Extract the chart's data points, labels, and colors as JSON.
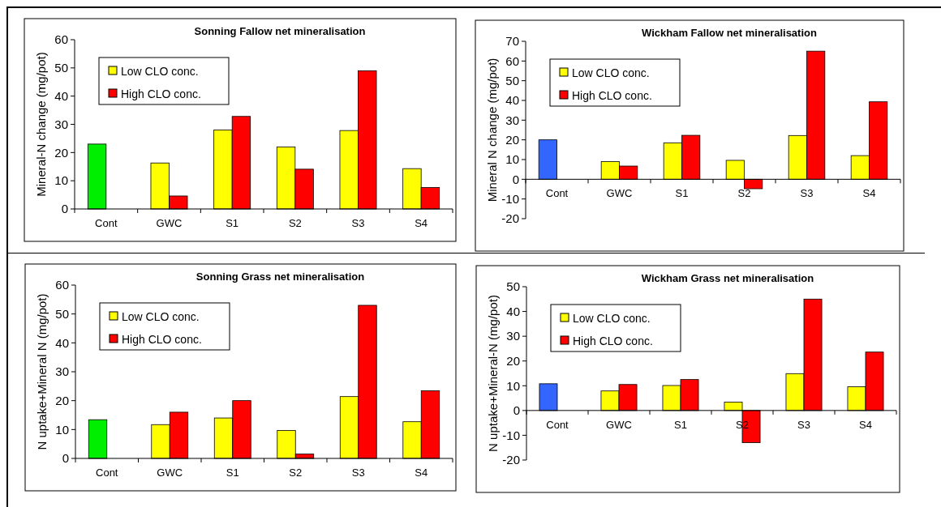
{
  "chart_data": [
    {
      "type": "bar",
      "title": "Sonning Fallow net mineralisation",
      "ylabel": "Mineral-N change (mg/pot)",
      "categories": [
        "Cont",
        "GWC",
        "S1",
        "S2",
        "S3",
        "S4"
      ],
      "series": [
        {
          "name": "Low CLO conc.",
          "color": "#ffff00",
          "colors": [
            "#00ee00",
            "#ffff00",
            "#ffff00",
            "#ffff00",
            "#ffff00",
            "#ffff00"
          ],
          "values": [
            23,
            16.3,
            28,
            22,
            27.8,
            14.3
          ]
        },
        {
          "name": "High CLO conc.",
          "color": "#ff0000",
          "values": [
            null,
            4.6,
            32.8,
            14.1,
            49,
            7.6
          ]
        }
      ],
      "ylim": [
        0,
        60
      ],
      "yticks": [
        0,
        10,
        20,
        30,
        40,
        50,
        60
      ],
      "legend": "top left",
      "grid": false
    },
    {
      "type": "bar",
      "title": "Wickham Fallow net mineralisation",
      "ylabel": "Mineral N change (mg/pot)",
      "categories": [
        "Cont",
        "GWC",
        "S1",
        "S2",
        "S3",
        "S4"
      ],
      "series": [
        {
          "name": "Low CLO conc.",
          "color": "#ffff00",
          "colors": [
            "#3366ff",
            "#ffff00",
            "#ffff00",
            "#ffff00",
            "#ffff00",
            "#ffff00"
          ],
          "values": [
            20,
            9,
            18.5,
            9.6,
            22.2,
            12
          ]
        },
        {
          "name": "High CLO conc.",
          "color": "#ff0000",
          "values": [
            null,
            6.7,
            22.3,
            -4.8,
            65,
            39.3
          ]
        }
      ],
      "ylim": [
        -20,
        70
      ],
      "yticks": [
        -20,
        -10,
        0,
        10,
        20,
        30,
        40,
        50,
        60,
        70
      ],
      "legend": "top left",
      "grid": false
    },
    {
      "type": "bar",
      "title": "Sonning Grass net mineralisation",
      "ylabel": "N uptake+Mineral N (mg/pot)",
      "categories": [
        "Cont",
        "GWC",
        "S1",
        "S2",
        "S3",
        "S4"
      ],
      "series": [
        {
          "name": "Low CLO conc.",
          "color": "#ffff00",
          "colors": [
            "#00ee00",
            "#ffff00",
            "#ffff00",
            "#ffff00",
            "#ffff00",
            "#ffff00"
          ],
          "values": [
            13.4,
            11.7,
            14,
            9.7,
            21.4,
            12.7
          ]
        },
        {
          "name": "High CLO conc.",
          "color": "#ff0000",
          "values": [
            null,
            16,
            20,
            1.5,
            53,
            23.4
          ]
        }
      ],
      "ylim": [
        0,
        60
      ],
      "yticks": [
        0,
        10,
        20,
        30,
        40,
        50,
        60
      ],
      "legend": "top left",
      "grid": false
    },
    {
      "type": "bar",
      "title": "Wickham Grass net mineralisation",
      "ylabel": "N uptake+Mineral-N (mg/pot)",
      "categories": [
        "Cont",
        "GWC",
        "S1",
        "S2",
        "S3",
        "S4"
      ],
      "series": [
        {
          "name": "Low CLO conc.",
          "color": "#ffff00",
          "colors": [
            "#3366ff",
            "#ffff00",
            "#ffff00",
            "#ffff00",
            "#ffff00",
            "#ffff00"
          ],
          "values": [
            10.8,
            7.9,
            10.1,
            3.4,
            14.9,
            9.6
          ]
        },
        {
          "name": "High CLO conc.",
          "color": "#ff0000",
          "values": [
            null,
            10.5,
            12.5,
            -13,
            45,
            23.6
          ]
        }
      ],
      "ylim": [
        -20,
        50
      ],
      "yticks": [
        -20,
        -10,
        0,
        10,
        20,
        30,
        40,
        50
      ],
      "legend": "top left",
      "grid": false
    }
  ]
}
